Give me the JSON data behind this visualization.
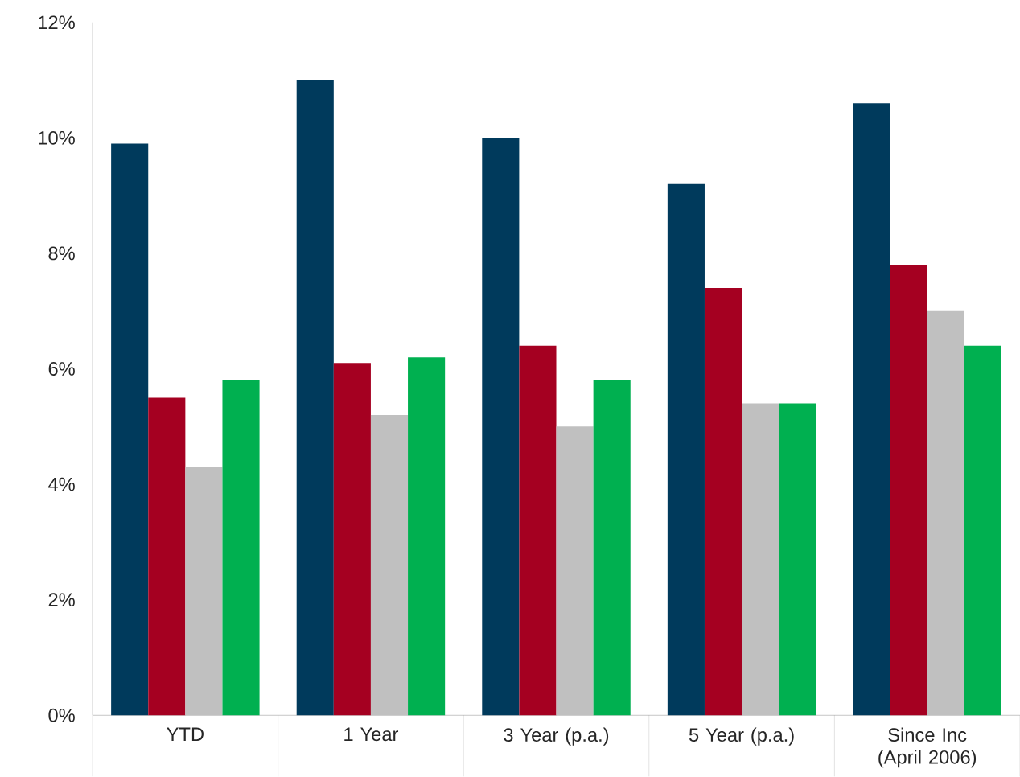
{
  "chart_data": {
    "type": "bar",
    "categories": [
      "YTD",
      "1 Year",
      "3 Year (p.a.)",
      "5 Year (p.a.)",
      "Since Inc (April 2006)"
    ],
    "series": [
      {
        "color": "#003a5c",
        "values": [
          9.9,
          11.0,
          10.0,
          9.2,
          10.6
        ]
      },
      {
        "color": "#a50021",
        "values": [
          5.5,
          6.1,
          6.4,
          7.4,
          7.8
        ]
      },
      {
        "color": "#c0c0c0",
        "values": [
          4.3,
          5.2,
          5.0,
          5.4,
          7.0
        ]
      },
      {
        "color": "#00b050",
        "values": [
          5.8,
          6.2,
          5.8,
          5.4,
          6.4
        ]
      }
    ],
    "ylim": [
      0,
      12
    ],
    "yticks": [
      {
        "value": 0,
        "label": "0%"
      },
      {
        "value": 2,
        "label": "2%"
      },
      {
        "value": 4,
        "label": "4%"
      },
      {
        "value": 6,
        "label": "6%"
      },
      {
        "value": 8,
        "label": "8%"
      },
      {
        "value": 10,
        "label": "10%"
      },
      {
        "value": 12,
        "label": "12%"
      }
    ]
  }
}
